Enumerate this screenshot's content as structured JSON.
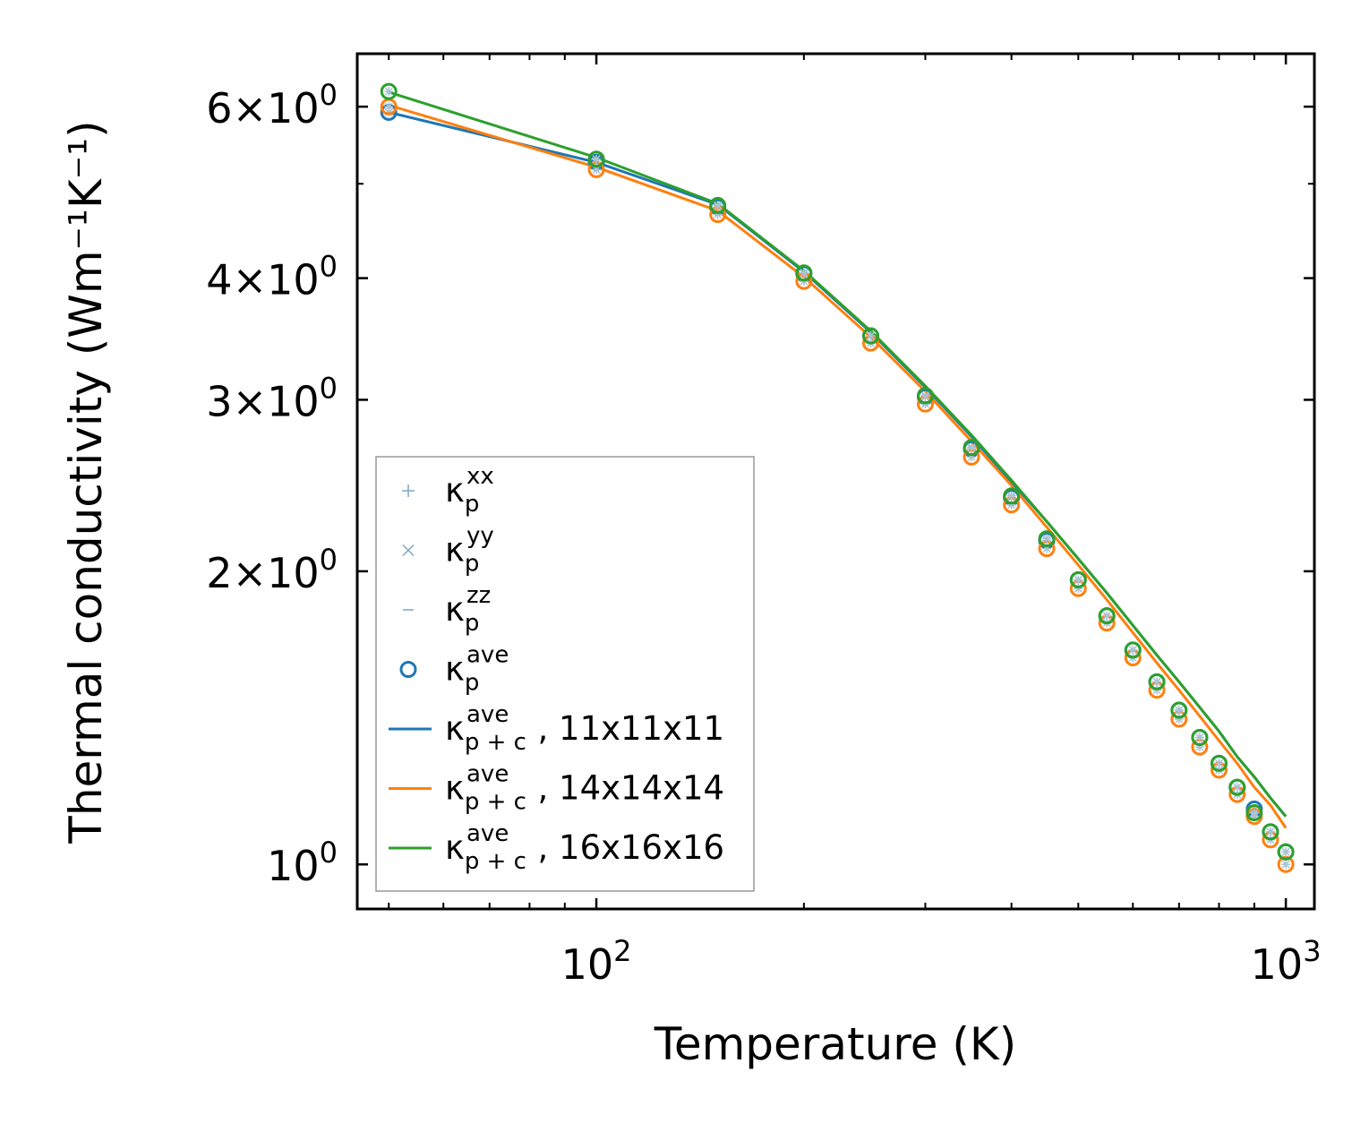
{
  "chart_data": {
    "type": "line",
    "xlabel": "Temperature (K)",
    "ylabel": "Thermal conductivity (Wm⁻¹K⁻¹)",
    "xscale": "log",
    "yscale": "log",
    "xlim": [
      45,
      1100
    ],
    "ylim": [
      0.9,
      6.8
    ],
    "x_ticks": [
      {
        "value": 100,
        "base": "10",
        "exp": "2"
      },
      {
        "value": 1000,
        "base": "10",
        "exp": "3"
      }
    ],
    "y_ticks": [
      {
        "value": 1,
        "base": "10",
        "exp": "0",
        "mant": ""
      },
      {
        "value": 2,
        "base": "10",
        "exp": "0",
        "mant": "2×"
      },
      {
        "value": 3,
        "base": "10",
        "exp": "0",
        "mant": "3×"
      },
      {
        "value": 4,
        "base": "10",
        "exp": "0",
        "mant": "4×"
      },
      {
        "value": 6,
        "base": "10",
        "exp": "0",
        "mant": "6×"
      }
    ],
    "tick_direction": "in",
    "grid": false,
    "legend_position": "lower-left",
    "colors": {
      "blue": "#1f77b4",
      "orange": "#ff7f0e",
      "green": "#2ca02c"
    },
    "x": [
      50,
      100,
      150,
      200,
      250,
      300,
      350,
      400,
      450,
      500,
      550,
      600,
      650,
      700,
      750,
      800,
      850,
      900,
      950,
      1000
    ],
    "scatter_series": [
      {
        "color": "#1f77b4",
        "values": [
          5.92,
          5.26,
          4.73,
          4.04,
          3.49,
          3.02,
          2.67,
          2.38,
          2.15,
          1.96,
          1.8,
          1.66,
          1.54,
          1.44,
          1.35,
          1.27,
          1.2,
          1.14,
          1.08,
          1.03
        ]
      },
      {
        "color": "#ff7f0e",
        "values": [
          6.0,
          5.17,
          4.65,
          3.97,
          3.43,
          2.97,
          2.62,
          2.34,
          2.11,
          1.92,
          1.77,
          1.63,
          1.51,
          1.41,
          1.32,
          1.25,
          1.18,
          1.12,
          1.06,
          1.0
        ]
      },
      {
        "color": "#2ca02c",
        "values": [
          6.22,
          5.3,
          4.75,
          4.05,
          3.49,
          3.03,
          2.68,
          2.39,
          2.16,
          1.96,
          1.8,
          1.66,
          1.54,
          1.44,
          1.35,
          1.27,
          1.2,
          1.13,
          1.08,
          1.03
        ]
      }
    ],
    "line_series": [
      {
        "color": "#1f77b4",
        "values": [
          5.92,
          5.26,
          4.76,
          4.06,
          3.52,
          3.09,
          2.75,
          2.47,
          2.25,
          2.06,
          1.9,
          1.76,
          1.64,
          1.54,
          1.45,
          1.37,
          1.29,
          1.23,
          1.17,
          1.12
        ]
      },
      {
        "color": "#ff7f0e",
        "values": [
          6.02,
          5.2,
          4.69,
          4.01,
          3.48,
          3.06,
          2.72,
          2.45,
          2.22,
          2.03,
          1.87,
          1.73,
          1.61,
          1.51,
          1.42,
          1.34,
          1.27,
          1.2,
          1.15,
          1.09
        ]
      },
      {
        "color": "#2ca02c",
        "values": [
          6.21,
          5.32,
          4.77,
          4.07,
          3.53,
          3.1,
          2.76,
          2.48,
          2.25,
          2.06,
          1.9,
          1.76,
          1.64,
          1.54,
          1.45,
          1.37,
          1.29,
          1.23,
          1.17,
          1.12
        ]
      }
    ],
    "legend": [
      {
        "marker": "plus",
        "color": "#7fa7c4",
        "symbol": "κ",
        "sub": "p",
        "sup": "xx",
        "suffix": ""
      },
      {
        "marker": "x",
        "color": "#7fa7c4",
        "symbol": "κ",
        "sub": "p",
        "sup": "yy",
        "suffix": ""
      },
      {
        "marker": "dash",
        "color": "#7fa7c4",
        "symbol": "κ",
        "sub": "p",
        "sup": "zz",
        "suffix": ""
      },
      {
        "marker": "circle",
        "color": "#1f77b4",
        "symbol": "κ",
        "sub": "p",
        "sup": "ave",
        "suffix": ""
      },
      {
        "marker": "line",
        "color": "#1f77b4",
        "symbol": "κ",
        "sub": "p + c",
        "sup": "ave",
        "suffix": ", 11x11x11"
      },
      {
        "marker": "line",
        "color": "#ff7f0e",
        "symbol": "κ",
        "sub": "p + c",
        "sup": "ave",
        "suffix": ", 14x14x14"
      },
      {
        "marker": "line",
        "color": "#2ca02c",
        "symbol": "κ",
        "sub": "p + c",
        "sup": "ave",
        "suffix": ", 16x16x16"
      }
    ]
  }
}
